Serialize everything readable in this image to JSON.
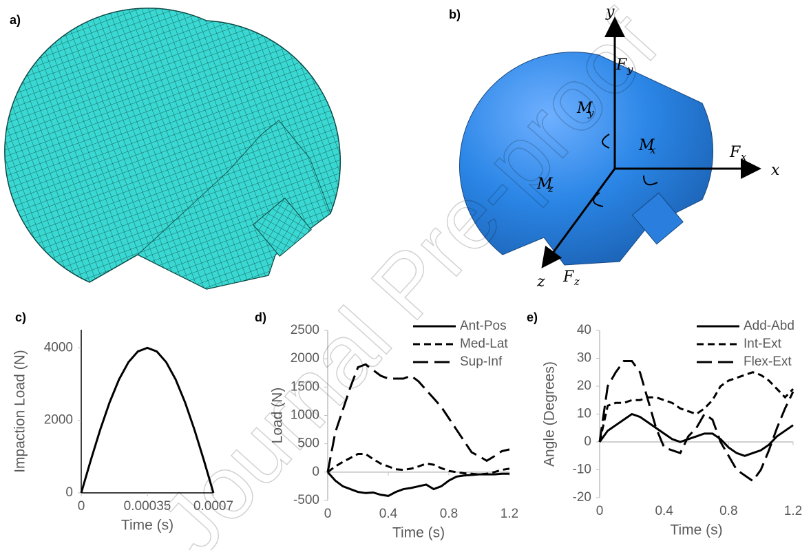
{
  "panels": {
    "a": "a)",
    "b": "b)"
  },
  "watermark": "Journal Pre-proof",
  "diagram_b": {
    "labels": [
      {
        "main": "y"
      },
      {
        "main": "F",
        "sub": "y"
      },
      {
        "main": "M",
        "sub": "y"
      },
      {
        "main": "M",
        "sub": "x"
      },
      {
        "main": "F",
        "sub": "x"
      },
      {
        "main": "x"
      },
      {
        "main": "M",
        "sub": "z"
      },
      {
        "main": "F",
        "sub": "z"
      },
      {
        "main": "z"
      }
    ]
  },
  "chart_data": [
    {
      "type": "line",
      "panel_label": "c)",
      "x_label": "Time (s)",
      "y_label": "Impaction Load (N)",
      "x": [
        0,
        5e-05,
        0.0001,
        0.00015,
        0.0002,
        0.00025,
        0.0003,
        0.00035,
        0.0004,
        0.00045,
        0.0005,
        0.00055,
        0.0006,
        0.00065,
        0.0007
      ],
      "values": [
        0,
        890,
        1735,
        2494,
        3127,
        3604,
        3901,
        4000,
        3901,
        3604,
        3127,
        2494,
        1735,
        890,
        0
      ],
      "color": "#000000",
      "xlim": [
        0,
        0.0007
      ],
      "xticks": [
        0,
        0.00035,
        0.0007
      ],
      "ylim": [
        0,
        4500
      ],
      "yticks": [
        0,
        2000,
        4000
      ]
    },
    {
      "type": "line",
      "panel_label": "d)",
      "x_label": "Time (s)",
      "y_label": "Load (N)",
      "x": [
        0,
        0.05,
        0.1,
        0.15,
        0.2,
        0.25,
        0.3,
        0.35,
        0.4,
        0.45,
        0.5,
        0.55,
        0.6,
        0.65,
        0.7,
        0.75,
        0.8,
        0.85,
        0.9,
        0.95,
        1,
        1.05,
        1.1,
        1.15,
        1.2
      ],
      "series": [
        {
          "name": "Ant-Pos",
          "color": "#000000",
          "style": "solid",
          "values": [
            0,
            -150,
            -250,
            -300,
            -350,
            -370,
            -360,
            -400,
            -420,
            -350,
            -300,
            -280,
            -250,
            -220,
            -300,
            -250,
            -150,
            -80,
            -60,
            -50,
            -40,
            -40,
            -40,
            -30,
            -30
          ]
        },
        {
          "name": "Med-Lat",
          "color": "#000000",
          "style": "dashed",
          "values": [
            0,
            100,
            180,
            250,
            320,
            320,
            230,
            150,
            100,
            50,
            40,
            60,
            100,
            150,
            130,
            70,
            20,
            0,
            -20,
            -30,
            -40,
            -30,
            0,
            40,
            60
          ]
        },
        {
          "name": "Sup-Inf",
          "color": "#000000",
          "style": "long-dashed",
          "values": [
            0,
            700,
            1100,
            1500,
            1850,
            1900,
            1800,
            1700,
            1650,
            1650,
            1650,
            1700,
            1600,
            1450,
            1300,
            1150,
            950,
            750,
            550,
            350,
            280,
            200,
            280,
            370,
            400
          ]
        }
      ],
      "xlim": [
        0,
        1.2
      ],
      "xticks": [
        0,
        0.4,
        0.8,
        1.2
      ],
      "ylim": [
        -500,
        2500
      ],
      "yticks": [
        -500,
        0,
        500,
        1000,
        1500,
        2000,
        2500
      ],
      "legend": "top-right"
    },
    {
      "type": "line",
      "panel_label": "e)",
      "x_label": "Time (s)",
      "y_label": "Angle (Degrees)",
      "x": [
        0,
        0.05,
        0.1,
        0.15,
        0.2,
        0.25,
        0.3,
        0.35,
        0.4,
        0.45,
        0.5,
        0.55,
        0.6,
        0.65,
        0.7,
        0.75,
        0.8,
        0.85,
        0.9,
        0.95,
        1,
        1.05,
        1.1,
        1.15,
        1.2
      ],
      "series": [
        {
          "name": "Add-Abd",
          "color": "#000000",
          "style": "solid",
          "values": [
            0,
            4,
            6,
            8,
            10,
            9,
            7,
            5,
            3,
            1,
            0,
            1,
            2,
            3,
            3,
            1,
            -2,
            -4,
            -5,
            -4,
            -3,
            -1,
            2,
            4,
            6
          ]
        },
        {
          "name": "Int-Ext",
          "color": "#000000",
          "style": "dashed",
          "values": [
            0,
            13,
            14,
            14,
            15,
            15,
            16,
            16,
            15,
            14,
            12,
            11,
            10,
            12,
            15,
            20,
            22,
            23,
            24,
            25,
            24,
            22,
            19,
            16,
            19
          ]
        },
        {
          "name": "Flex-Ext",
          "color": "#000000",
          "style": "long-dashed",
          "values": [
            0,
            20,
            25,
            29,
            29,
            25,
            15,
            5,
            -2,
            -3,
            -4,
            2,
            5,
            10,
            8,
            0,
            -5,
            -10,
            -12,
            -14,
            -10,
            -3,
            5,
            12,
            18
          ]
        }
      ],
      "xlim": [
        0,
        1.2
      ],
      "xticks": [
        0,
        0.4,
        0.8,
        1.2
      ],
      "ylim": [
        -20,
        40
      ],
      "yticks": [
        -20,
        -10,
        0,
        10,
        20,
        30,
        40
      ],
      "legend": "top-right"
    }
  ]
}
